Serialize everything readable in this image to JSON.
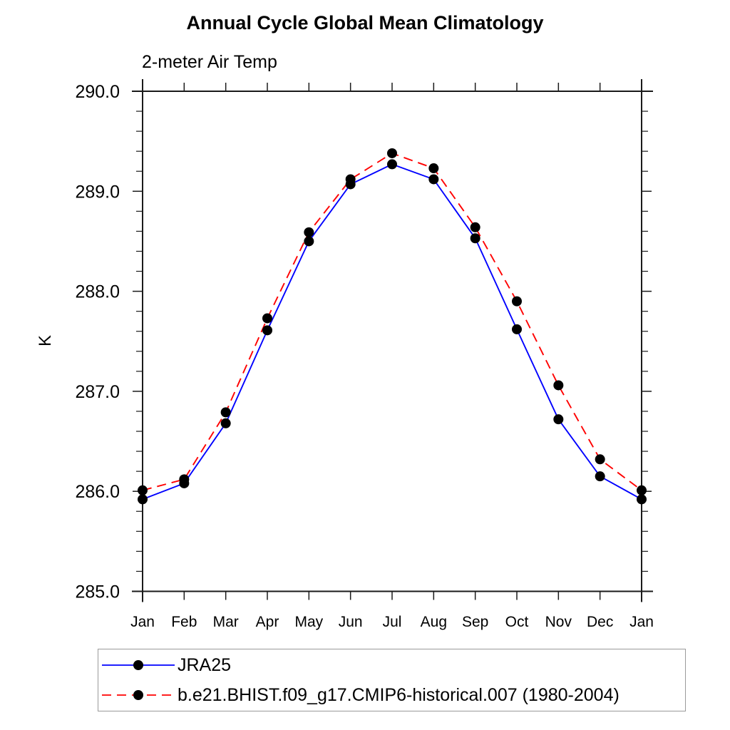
{
  "chart_data": {
    "type": "line",
    "title": "Annual Cycle Global Mean Climatology",
    "subtitle": "2-meter Air Temp",
    "ylabel": "K",
    "xlabel": "",
    "categories": [
      "Jan",
      "Feb",
      "Mar",
      "Apr",
      "May",
      "Jun",
      "Jul",
      "Aug",
      "Sep",
      "Oct",
      "Nov",
      "Dec",
      "Jan"
    ],
    "ylim": [
      285.0,
      290.0
    ],
    "ytick_labels": [
      "285.0",
      "286.0",
      "287.0",
      "288.0",
      "289.0",
      "290.0"
    ],
    "yticks_major": [
      285.0,
      286.0,
      287.0,
      288.0,
      289.0,
      290.0
    ],
    "minor_tick_interval": 0.2,
    "grid": false,
    "legend_position": "bottom-left-box",
    "frame_color": "#1a1a1a",
    "marker_radius": 7,
    "series": [
      {
        "name": "JRA25",
        "color": "#0000ff",
        "line_style": "solid",
        "marker": "circle",
        "marker_color": "#000000",
        "values": [
          285.92,
          286.08,
          286.68,
          287.61,
          288.5,
          289.07,
          289.27,
          289.12,
          288.53,
          287.62,
          286.72,
          286.15,
          285.92
        ]
      },
      {
        "name": "b.e21.BHIST.f09_g17.CMIP6-historical.007 (1980-2004)",
        "color": "#ff0000",
        "line_style": "dashed",
        "marker": "circle",
        "marker_color": "#000000",
        "values": [
          286.01,
          286.12,
          286.79,
          287.73,
          288.59,
          289.12,
          289.38,
          289.23,
          288.64,
          287.9,
          287.06,
          286.32,
          286.01
        ]
      }
    ]
  }
}
